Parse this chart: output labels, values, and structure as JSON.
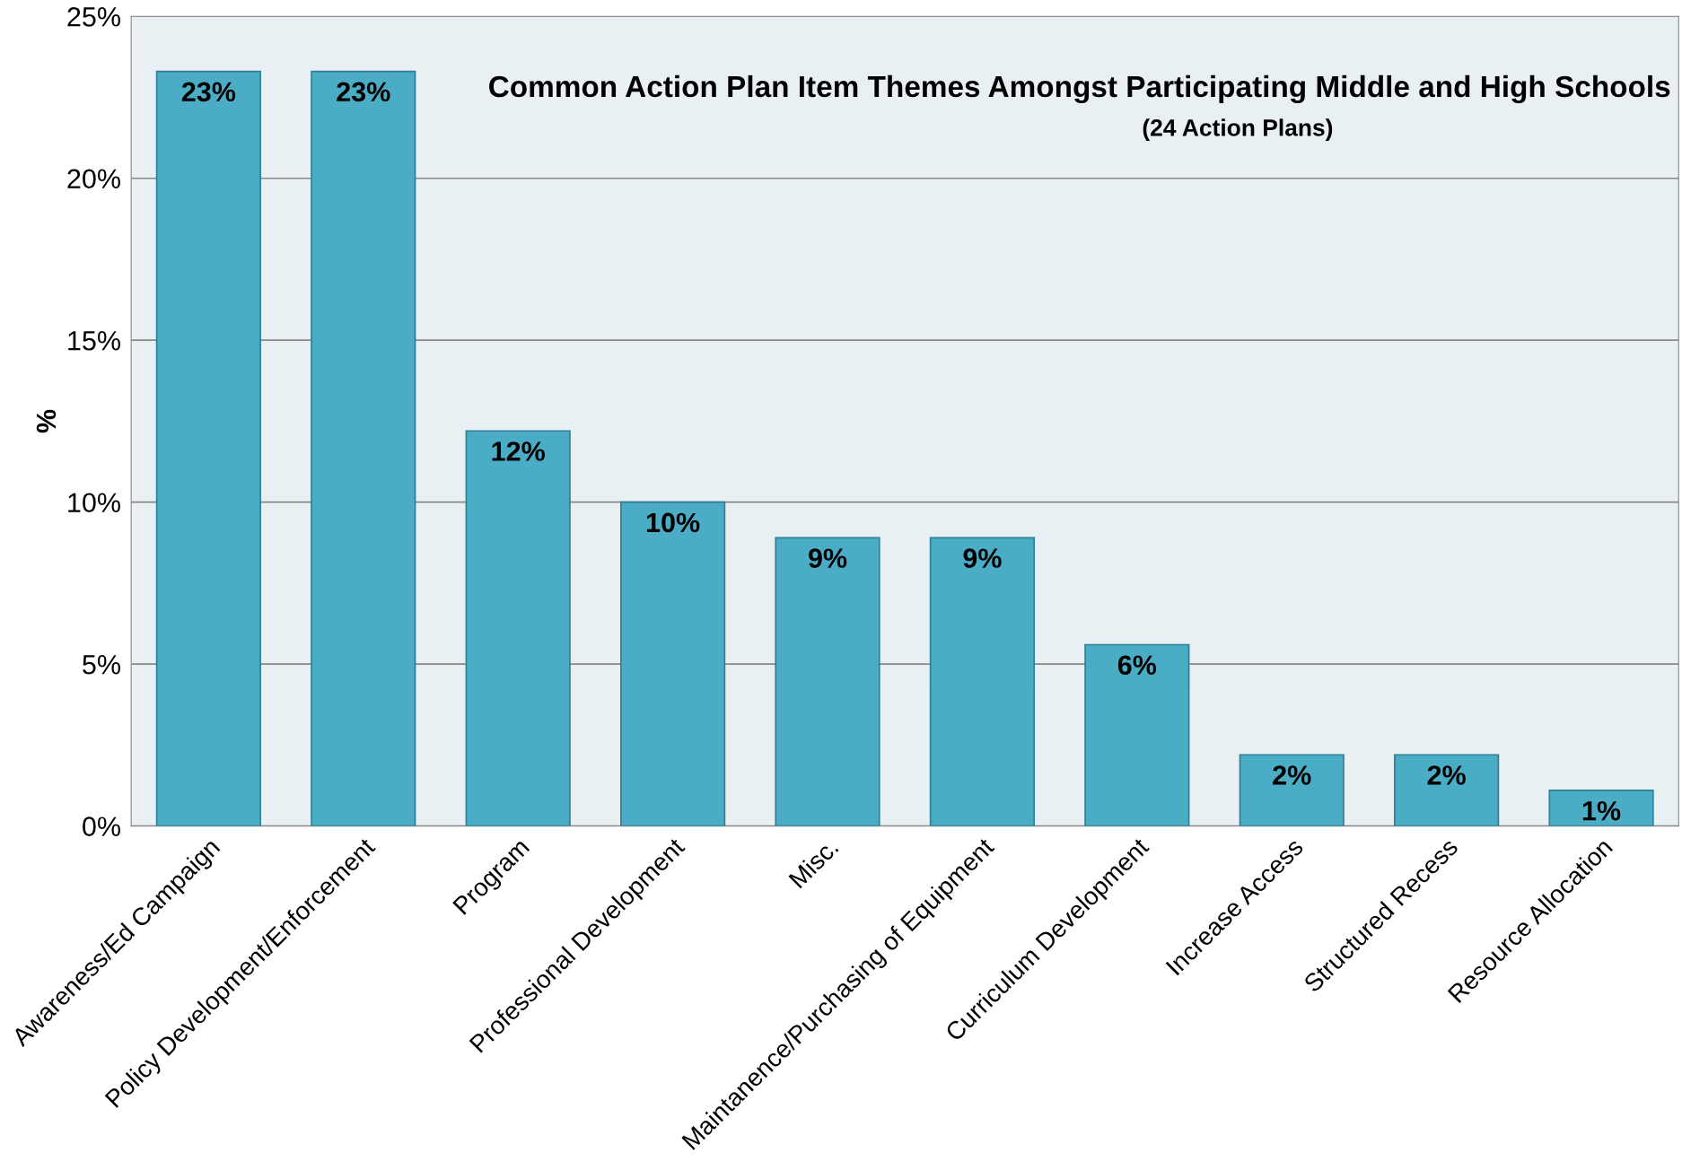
{
  "chart_data": {
    "type": "bar",
    "title": "Common Action Plan Item Themes Amongst Participating Middle and High Schools",
    "subtitle": "(24 Action Plans)",
    "ylabel": "%",
    "categories": [
      "Awareness/Ed Campaign",
      "Policy Development/Enforcement",
      "Program",
      "Professional Development",
      "Misc.",
      "Maintanence/Purchasing of Equipment",
      "Curriculum Development",
      "Increase Access",
      "Structured Recess",
      "Resource Allocation"
    ],
    "values": [
      23.3,
      23.3,
      12.2,
      10.0,
      8.9,
      8.9,
      5.6,
      2.2,
      2.2,
      1.1
    ],
    "value_labels": [
      "23%",
      "23%",
      "12%",
      "10%",
      "9%",
      "9%",
      "6%",
      "2%",
      "2%",
      "1%"
    ],
    "color": "#4bacc6",
    "ylim": [
      0,
      25
    ],
    "yticks": [
      {
        "value": 0,
        "label": "0%"
      },
      {
        "value": 5,
        "label": "5%"
      },
      {
        "value": 10,
        "label": "10%"
      },
      {
        "value": 15,
        "label": "15%"
      },
      {
        "value": 20,
        "label": "20%"
      },
      {
        "value": 25,
        "label": "25%"
      }
    ],
    "grid": "y",
    "legend": false
  }
}
